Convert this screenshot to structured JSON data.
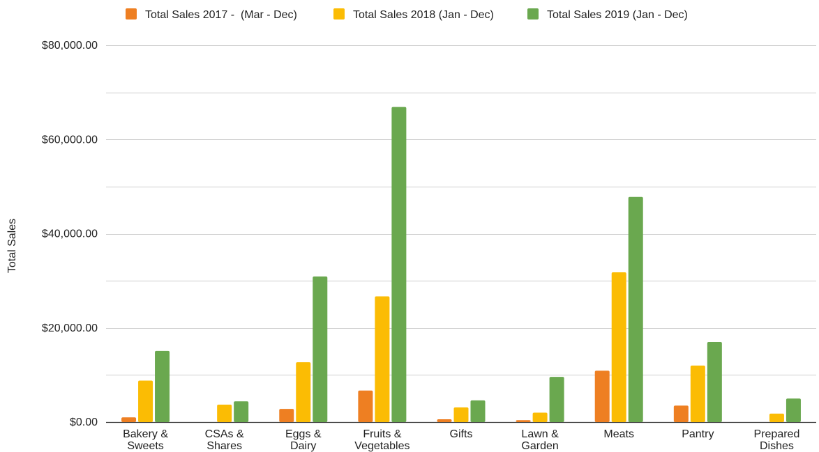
{
  "chart_data": {
    "type": "bar",
    "title": "",
    "xlabel": "",
    "ylabel": "Total Sales",
    "ylim": [
      0,
      80000
    ],
    "y_tick_step": 20000,
    "y_ticks": [
      "$0.00",
      "$20,000.00",
      "$40,000.00",
      "$60,000.00",
      "$80,000.00"
    ],
    "grid": true,
    "legend_position": "top",
    "categories": [
      [
        "Bakery &",
        "Sweets"
      ],
      [
        "CSAs &",
        "Shares"
      ],
      [
        "Eggs &",
        "Dairy"
      ],
      [
        "Fruits &",
        "Vegetables"
      ],
      [
        "Gifts"
      ],
      [
        "Lawn &",
        "Garden"
      ],
      [
        "Meats"
      ],
      [
        "Pantry"
      ],
      [
        "Prepared",
        "Dishes"
      ]
    ],
    "series": [
      {
        "name": "Total Sales 2017 -  (Mar - Dec)",
        "color": "#ee7f22",
        "values": [
          1000,
          0,
          2800,
          6700,
          600,
          400,
          10900,
          3500,
          0
        ]
      },
      {
        "name": "Total Sales 2018 (Jan - Dec)",
        "color": "#fbbc04",
        "values": [
          8800,
          3700,
          12700,
          26700,
          3100,
          2000,
          31800,
          12000,
          1800
        ]
      },
      {
        "name": "Total Sales 2019 (Jan - Dec)",
        "color": "#6aa84f",
        "values": [
          15100,
          4400,
          30900,
          66900,
          4600,
          9600,
          47800,
          17000,
          5000
        ]
      }
    ]
  }
}
